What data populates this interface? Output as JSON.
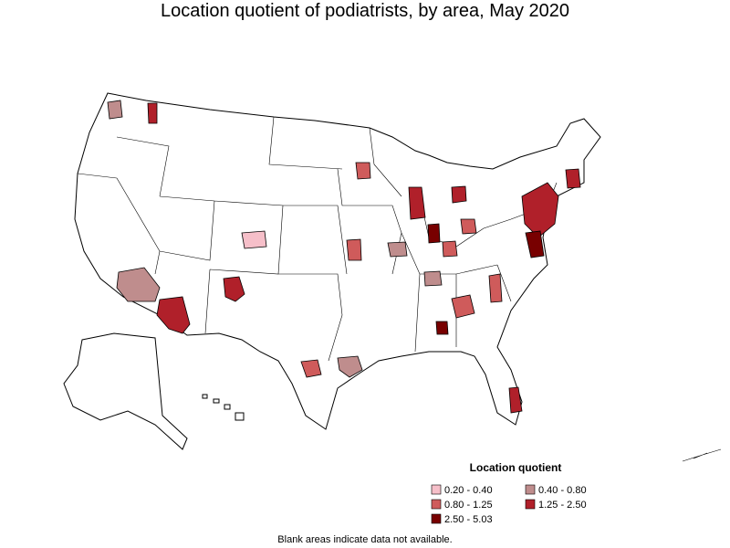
{
  "title": "Location quotient of podiatrists, by area, May 2020",
  "legend": {
    "title": "Location quotient",
    "items": [
      {
        "label": "0.20 - 0.40",
        "color": "#f6bfc9"
      },
      {
        "label": "0.40 - 0.80",
        "color": "#bf8d8d"
      },
      {
        "label": "0.80 - 1.25",
        "color": "#cf5b5b"
      },
      {
        "label": "1.25 - 2.50",
        "color": "#b0202a"
      },
      {
        "label": "2.50 - 5.03",
        "color": "#780000"
      }
    ]
  },
  "note": "Blank areas indicate data not available."
}
